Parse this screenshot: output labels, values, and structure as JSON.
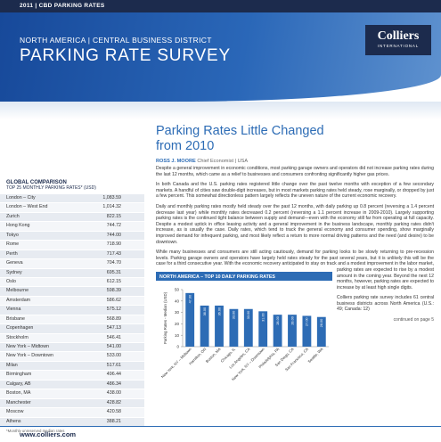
{
  "header": {
    "edition": "2011 | CBD PARKING RATES",
    "region": "NORTH AMERICA | CENTRAL BUSINESS DISTRICT",
    "title": "PARKING RATE SURVEY",
    "logo": {
      "name": "Colliers",
      "sub": "INTERNATIONAL"
    }
  },
  "sidebar": {
    "title": "GLOBAL COMPARISON",
    "subtitle": "TOP 25 MONTHLY PARKING RATES* (USD)",
    "rows": [
      [
        "London – City",
        "1,083.59"
      ],
      [
        "London – West End",
        "1,014.32"
      ],
      [
        "Zurich",
        "822.15"
      ],
      [
        "Hong Kong",
        "744.72"
      ],
      [
        "Tokyo",
        "744.00"
      ],
      [
        "Rome",
        "718.90"
      ],
      [
        "Perth",
        "717.43"
      ],
      [
        "Geneva",
        "704.70"
      ],
      [
        "Sydney",
        "695.31"
      ],
      [
        "Oslo",
        "612.15"
      ],
      [
        "Melbourne",
        "598.39"
      ],
      [
        "Amsterdam",
        "586.62"
      ],
      [
        "Vienna",
        "575.12"
      ],
      [
        "Brisbane",
        "568.89"
      ],
      [
        "Copenhagen",
        "547.13"
      ],
      [
        "Stockholm",
        "546.41"
      ],
      [
        "New York – Midtown",
        "541.00"
      ],
      [
        "New York – Downtown",
        "533.00"
      ],
      [
        "Milan",
        "517.61"
      ],
      [
        "Birmingham",
        "496.44"
      ],
      [
        "Calgary, AB",
        "486.34"
      ],
      [
        "Boston, MA",
        "438.00"
      ],
      [
        "Manchester",
        "428.82"
      ],
      [
        "Moscow",
        "420.58"
      ],
      [
        "Athens",
        "388.21"
      ]
    ],
    "footnote": "*Monthly unreserved median rates"
  },
  "article": {
    "title": "Parking Rates Little Changed from 2010",
    "author": {
      "name": "ROSS J. MOORE",
      "role": "Chief Economist | USA"
    },
    "paragraphs": [
      "Despite a general improvement in economic conditions, most parking garage owners and operators did not increase parking rates during the last 12 months, which came as a relief to businesses and consumers confronting significantly higher gas prices.",
      "In both Canada and the U.S. parking rates registered little change over the past twelve months with exception of a few secondary markets. A handful of cities saw double-digit increases, but in most markets parking rates held steady, rose marginally, or dropped by just a few percent. This somewhat directionless pattern largely reflects the uneven nature of the current economic recovery.",
      "Daily and monthly parking rates mostly held steady over the past 12 months, with daily parking up 0.8 percent (reversing a 1.4 percent decrease last year) while monthly rates decreased 0.2 percent (reversing a 1.1 percent increase in 2009-2010). Largely supporting parking rates is the continued tight balance between supply and demand—even with the economy still far from operating at full capacity. Despite a modest uptick in office leasing activity and a general improvement in the business landscape, monthly parking rates didn't increase, as is usually the case. Daily rates, which tend to track the general economy and consumer spending, show marginally improved demand for infrequent parking, and most likely reflect a return to more normal driving patterns and the need (and desire) to be downtown.",
      "While many businesses and consumers are still acting cautiously, demand for parking looks to be slowly returning to pre-recession levels. Parking garage owners and operators have largely held rates steady for the past several years, but it is unlikely this will be the case for a third consecutive year. With the economic recovery anticipated to stay on track and a modest improvement in the labor market, parking rates are expected to rise by a modest amount in the coming year. Beyond the next 12 months, however, parking rates are expected to increase by at least high single digits.",
      "Colliers parking rate survey includes 61 central business districts across North America (U.S.: 49; Canada: 12)"
    ],
    "continued": "continued on page 5"
  },
  "chart_data": {
    "type": "bar",
    "title": "NORTH AMERICA – TOP 10 DAILY PARKING RATES",
    "y_label": "Parking Rates - Median (USD)",
    "categories": [
      "New York, NY – Midtown",
      "Hamilton, ON",
      "Boston, MA",
      "Chicago, IL",
      "Los Angeles, CA",
      "New York, NY – Downtown",
      "Philadelphia, PA",
      "San Diego, CA",
      "San Francisco, CA",
      "Seattle, WA"
    ],
    "values": [
      47,
      36,
      36,
      33,
      33,
      31,
      28,
      28,
      27,
      26
    ],
    "value_labels": [
      "47.00",
      "36.00",
      "36.00",
      "33.00",
      "33.00",
      "31.00",
      "28.00",
      "28.00",
      "27.00",
      "26.00"
    ],
    "color": "#2d6cb5",
    "ylim": [
      0,
      50
    ],
    "yticks": [
      0,
      10,
      20,
      30,
      40,
      50
    ]
  },
  "footer": {
    "url": "www.colliers.com"
  }
}
